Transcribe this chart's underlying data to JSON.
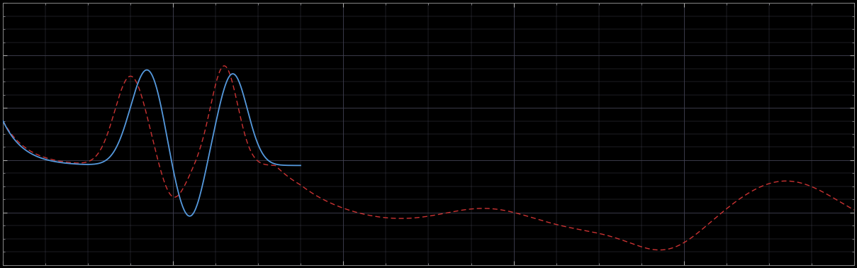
{
  "background_color": "#000000",
  "plot_bg_color": "#000000",
  "grid_color": "#444455",
  "blue_line_color": "#5599dd",
  "red_line_color": "#cc3333",
  "figsize": [
    12.09,
    3.78
  ],
  "dpi": 100,
  "xlim": [
    0,
    100
  ],
  "ylim": [
    0,
    10
  ],
  "x_major_ticks": [
    0,
    20,
    40,
    60,
    80,
    100
  ],
  "y_major_ticks": [
    0,
    2,
    4,
    6,
    8,
    10
  ],
  "x_minor_per_major": 4,
  "y_minor_per_major": 4
}
